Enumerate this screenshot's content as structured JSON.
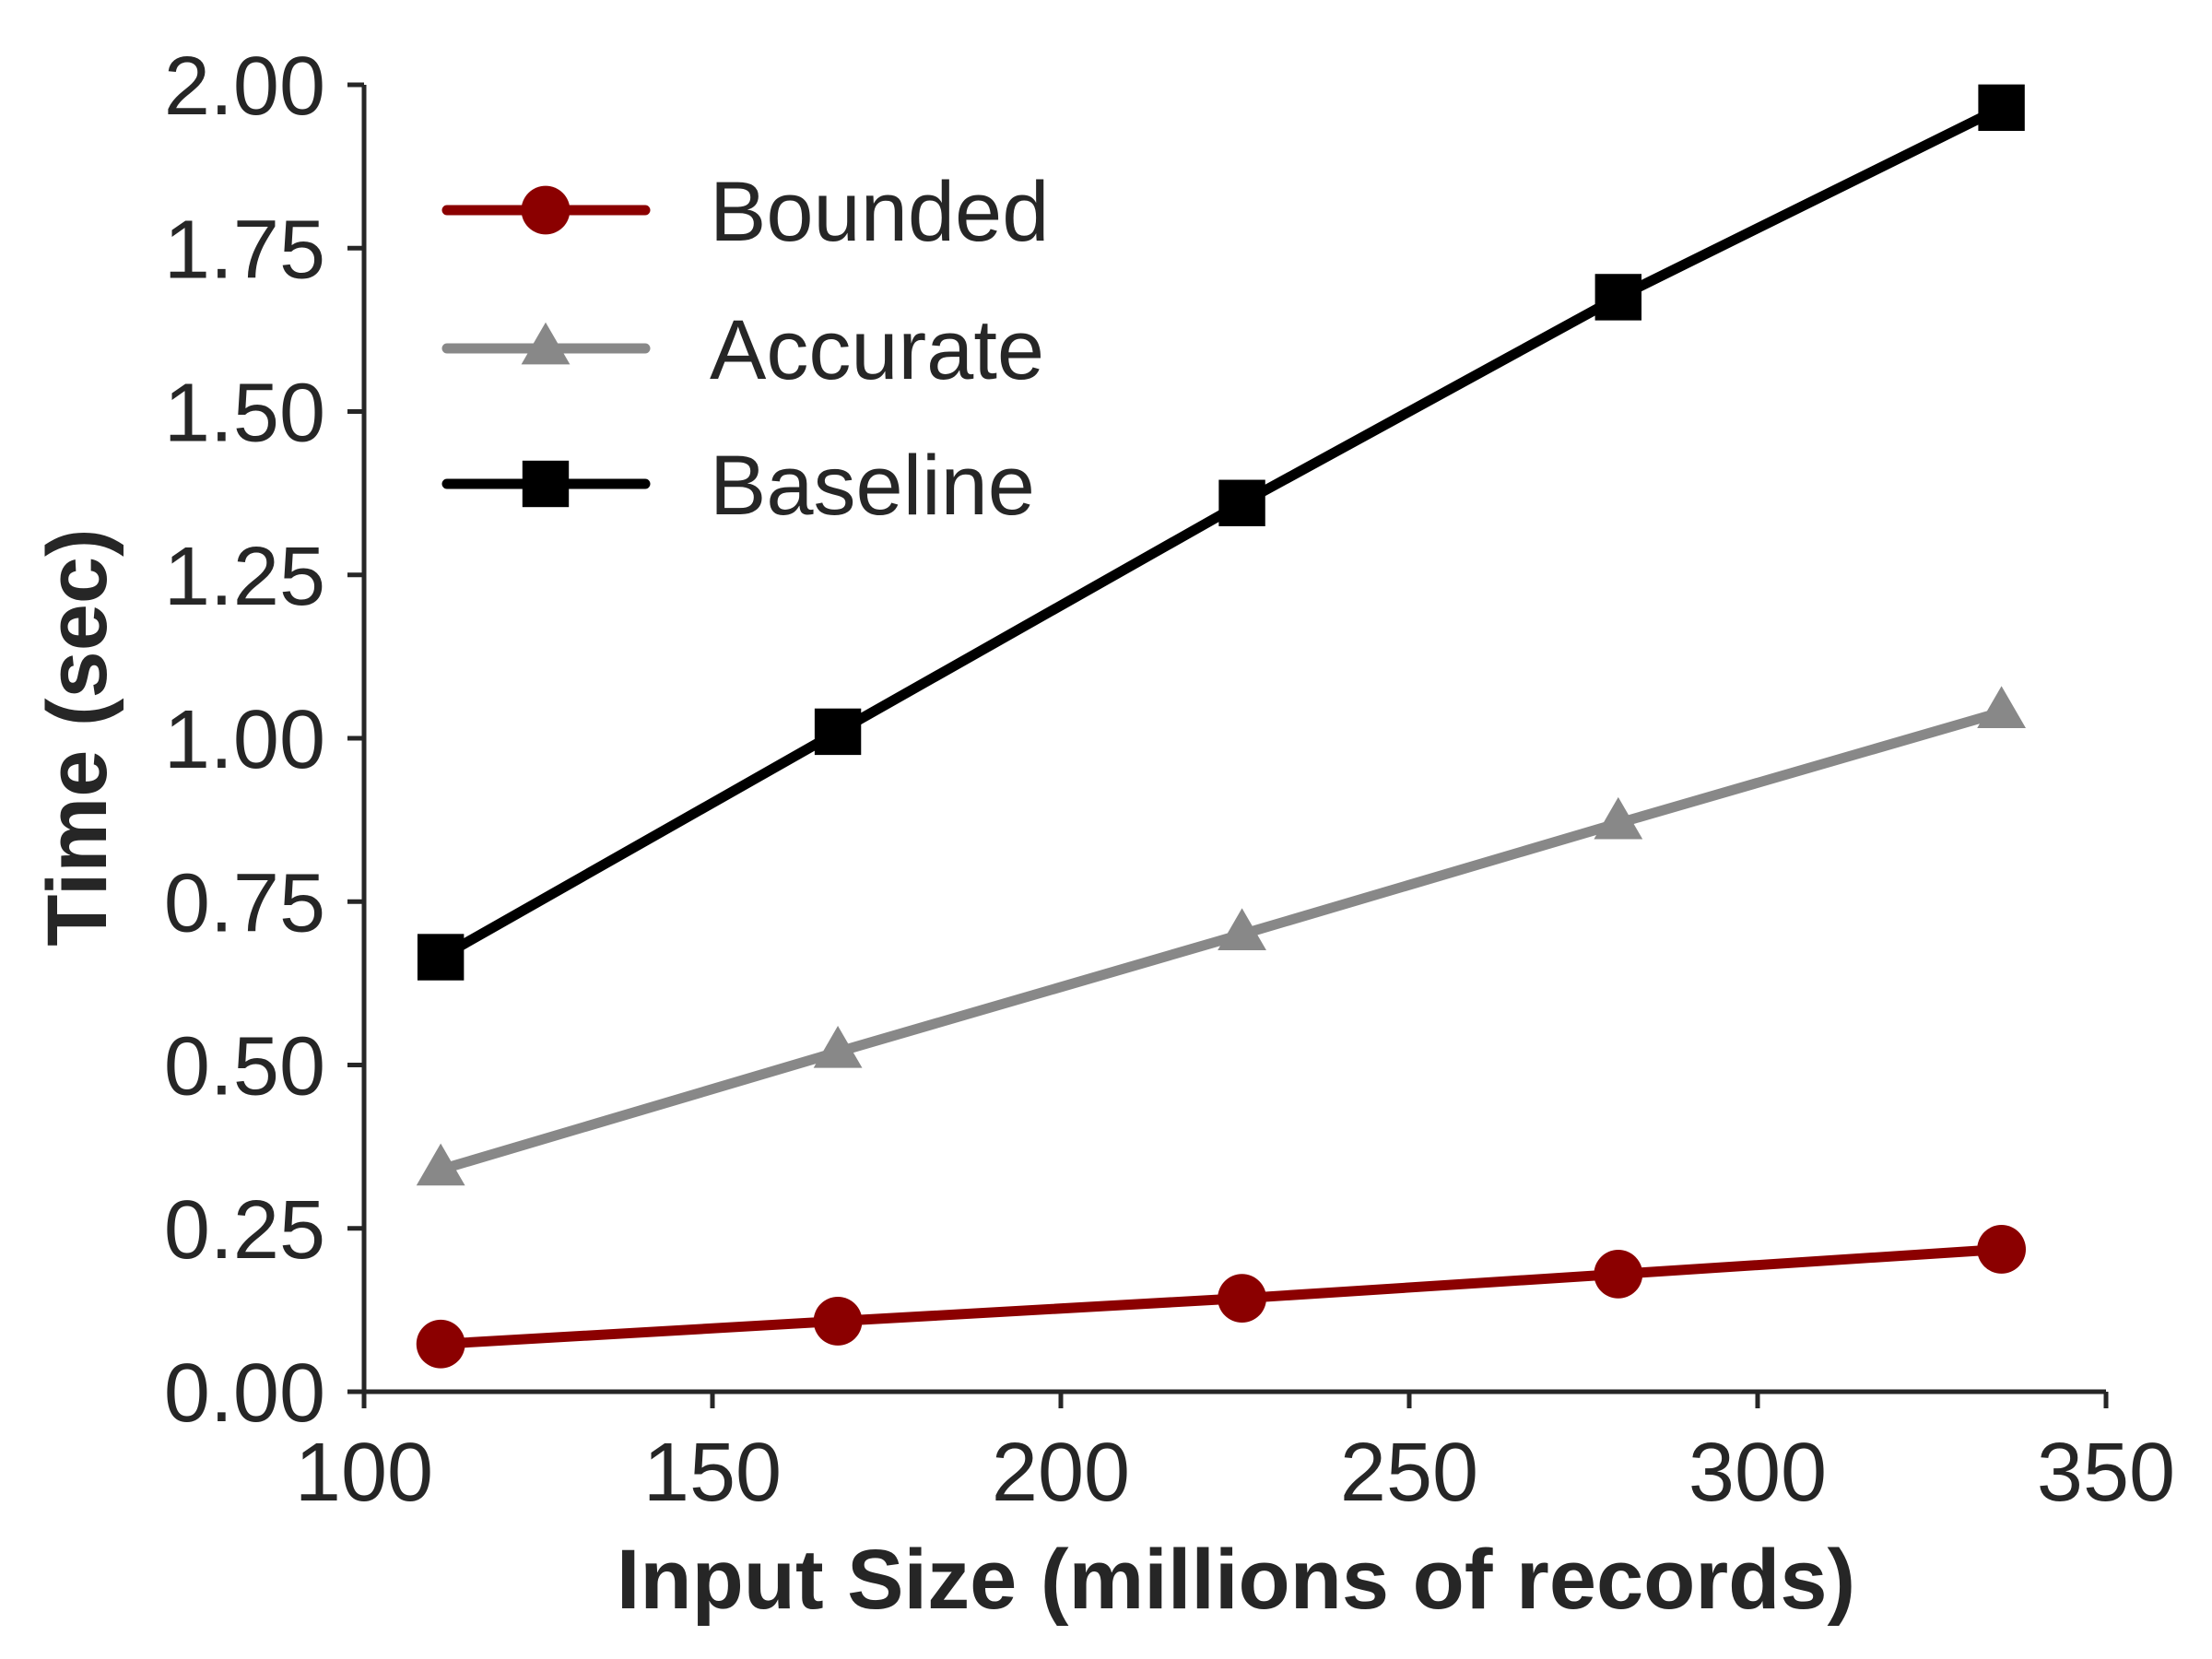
{
  "chart_data": {
    "type": "line",
    "xlabel": "Input Size (millions of records)",
    "ylabel": "Time (sec)",
    "xlim": [
      100,
      350
    ],
    "ylim": [
      0,
      2.0
    ],
    "xticks": [
      "100",
      "150",
      "200",
      "250",
      "300",
      "350"
    ],
    "yticks": [
      "0.00",
      "0.25",
      "0.50",
      "0.75",
      "1.00",
      "1.25",
      "1.50",
      "1.75",
      "2.00"
    ],
    "grid": false,
    "legend_position": "top-left",
    "x": [
      111,
      168,
      226,
      280,
      335
    ],
    "series": [
      {
        "name": "Bounded",
        "values": [
          0.073,
          0.108,
          0.143,
          0.18,
          0.218
        ],
        "color": "#8b0000",
        "marker": "circle"
      },
      {
        "name": "Accurate",
        "values": [
          0.34,
          0.52,
          0.7,
          0.87,
          1.04
        ],
        "color": "#888888",
        "marker": "triangle"
      },
      {
        "name": "Baseline",
        "values": [
          0.665,
          1.01,
          1.36,
          1.675,
          1.965
        ],
        "color": "#000000",
        "marker": "square"
      }
    ]
  }
}
